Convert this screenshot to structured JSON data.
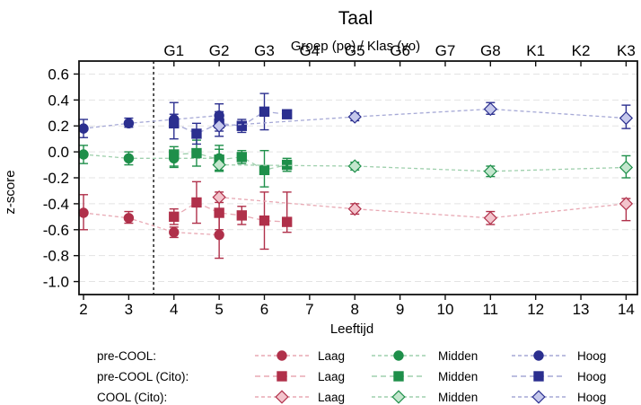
{
  "chart_data": {
    "type": "scatter",
    "title": "Taal",
    "xlabel": "Leeftijd",
    "ylabel": "z-score",
    "top_axis_label": "Groep (po) / Klas (vo)",
    "xlim": [
      1.9,
      14.25
    ],
    "ylim": [
      -1.1,
      0.7
    ],
    "x_ticks": [
      2,
      3,
      4,
      5,
      6,
      7,
      8,
      9,
      10,
      11,
      12,
      13,
      14
    ],
    "y_ticks": [
      0.6,
      0.4,
      0.2,
      0.0,
      -0.2,
      -0.4,
      -0.6,
      -0.8,
      -1.0
    ],
    "y_tick_labels": [
      "0.6",
      "0.4",
      "0.2",
      "0.0",
      "-0.2",
      "-0.4",
      "-0.6",
      "-0.8",
      "-1.0"
    ],
    "top_ticks": [
      {
        "label": "G1",
        "x": 4
      },
      {
        "label": "G2",
        "x": 5
      },
      {
        "label": "G3",
        "x": 6
      },
      {
        "label": "G4",
        "x": 7
      },
      {
        "label": "G5",
        "x": 8
      },
      {
        "label": "G6",
        "x": 9
      },
      {
        "label": "G7",
        "x": 10
      },
      {
        "label": "G8",
        "x": 11
      },
      {
        "label": "K1",
        "x": 12
      },
      {
        "label": "K2",
        "x": 13
      },
      {
        "label": "K3",
        "x": 14
      }
    ],
    "reference_line_x": 3.55,
    "grid": "horizontal-dashed",
    "legend_placement": "bottom",
    "series": [
      {
        "group": "pre-COOL:",
        "level": "Laag",
        "marker": "circle",
        "color": "#b0304a",
        "line_color": "#e8a9b4",
        "fill": "solid",
        "points": [
          {
            "x": 2,
            "y": -0.47,
            "lo": -0.6,
            "hi": -0.33
          },
          {
            "x": 3,
            "y": -0.51,
            "lo": -0.55,
            "hi": -0.46
          },
          {
            "x": 4,
            "y": -0.62,
            "lo": -0.66,
            "hi": -0.58
          },
          {
            "x": 5,
            "y": -0.64,
            "lo": -0.82,
            "hi": -0.46
          }
        ]
      },
      {
        "group": "pre-COOL:",
        "level": "Midden",
        "marker": "circle",
        "color": "#1e8f4a",
        "line_color": "#9fd0ad",
        "fill": "solid",
        "points": [
          {
            "x": 2,
            "y": -0.02,
            "lo": -0.09,
            "hi": 0.05
          },
          {
            "x": 3,
            "y": -0.05,
            "lo": -0.1,
            "hi": 0.0
          },
          {
            "x": 4,
            "y": -0.05,
            "lo": -0.11,
            "hi": 0.01
          },
          {
            "x": 5,
            "y": -0.05,
            "lo": -0.15,
            "hi": 0.05
          }
        ]
      },
      {
        "group": "pre-COOL:",
        "level": "Hoog",
        "marker": "circle",
        "color": "#2b2f8f",
        "line_color": "#a6a9d6",
        "fill": "solid",
        "points": [
          {
            "x": 2,
            "y": 0.18,
            "lo": 0.11,
            "hi": 0.25
          },
          {
            "x": 3,
            "y": 0.22,
            "lo": 0.19,
            "hi": 0.26
          },
          {
            "x": 4,
            "y": 0.25,
            "lo": 0.21,
            "hi": 0.29
          },
          {
            "x": 5,
            "y": 0.28,
            "lo": 0.19,
            "hi": 0.37
          }
        ]
      },
      {
        "group": "pre-COOL (Cito):",
        "level": "Laag",
        "marker": "square",
        "color": "#b0304a",
        "line_color": "#e8a9b4",
        "fill": "solid",
        "points": [
          {
            "x": 4,
            "y": -0.5,
            "lo": -0.56,
            "hi": -0.44
          },
          {
            "x": 4.5,
            "y": -0.39,
            "lo": -0.55,
            "hi": -0.23
          },
          {
            "x": 5,
            "y": -0.47,
            "lo": -0.6,
            "hi": -0.34
          },
          {
            "x": 5.5,
            "y": -0.49,
            "lo": -0.56,
            "hi": -0.42
          },
          {
            "x": 6,
            "y": -0.53,
            "lo": -0.75,
            "hi": -0.31
          },
          {
            "x": 6.5,
            "y": -0.54,
            "lo": -0.62,
            "hi": -0.31
          }
        ]
      },
      {
        "group": "pre-COOL (Cito):",
        "level": "Midden",
        "marker": "square",
        "color": "#1e8f4a",
        "line_color": "#9fd0ad",
        "fill": "solid",
        "points": [
          {
            "x": 4,
            "y": -0.02,
            "lo": -0.12,
            "hi": 0.04
          },
          {
            "x": 4.5,
            "y": -0.01,
            "lo": -0.11,
            "hi": 0.09
          },
          {
            "x": 5,
            "y": -0.06,
            "lo": -0.14,
            "hi": 0.02
          },
          {
            "x": 5.5,
            "y": -0.04,
            "lo": -0.09,
            "hi": 0.01
          },
          {
            "x": 6,
            "y": -0.14,
            "lo": -0.27,
            "hi": 0.01
          },
          {
            "x": 6.5,
            "y": -0.1,
            "lo": -0.15,
            "hi": -0.05
          }
        ]
      },
      {
        "group": "pre-COOL (Cito):",
        "level": "Hoog",
        "marker": "square",
        "color": "#2b2f8f",
        "line_color": "#a6a9d6",
        "fill": "solid",
        "points": [
          {
            "x": 4,
            "y": 0.22,
            "lo": 0.1,
            "hi": 0.38
          },
          {
            "x": 4.5,
            "y": 0.14,
            "lo": 0.06,
            "hi": 0.22
          },
          {
            "x": 5,
            "y": 0.22,
            "lo": 0.12,
            "hi": 0.31
          },
          {
            "x": 5.5,
            "y": 0.2,
            "lo": 0.15,
            "hi": 0.25
          },
          {
            "x": 6,
            "y": 0.31,
            "lo": 0.17,
            "hi": 0.45
          },
          {
            "x": 6.5,
            "y": 0.29,
            "lo": 0.26,
            "hi": 0.32
          }
        ]
      },
      {
        "group": "COOL (Cito):",
        "level": "Laag",
        "marker": "diamond",
        "color": "#b0304a",
        "line_color": "#e8a9b4",
        "fill": "light",
        "light_fill": "#f3c4cc",
        "points": [
          {
            "x": 5,
            "y": -0.35,
            "lo": -0.39,
            "hi": -0.31
          },
          {
            "x": 8,
            "y": -0.44,
            "lo": -0.48,
            "hi": -0.4
          },
          {
            "x": 11,
            "y": -0.51,
            "lo": -0.56,
            "hi": -0.46
          },
          {
            "x": 14,
            "y": -0.4,
            "lo": -0.53,
            "hi": -0.36
          }
        ]
      },
      {
        "group": "COOL (Cito):",
        "level": "Midden",
        "marker": "diamond",
        "color": "#1e8f4a",
        "line_color": "#9fd0ad",
        "fill": "light",
        "light_fill": "#c3e6cd",
        "points": [
          {
            "x": 5,
            "y": -0.1,
            "lo": -0.15,
            "hi": -0.05
          },
          {
            "x": 8,
            "y": -0.11,
            "lo": -0.14,
            "hi": -0.08
          },
          {
            "x": 11,
            "y": -0.15,
            "lo": -0.19,
            "hi": -0.11
          },
          {
            "x": 14,
            "y": -0.12,
            "lo": -0.2,
            "hi": -0.03
          }
        ]
      },
      {
        "group": "COOL (Cito):",
        "level": "Hoog",
        "marker": "diamond",
        "color": "#2b2f8f",
        "line_color": "#a6a9d6",
        "fill": "light",
        "light_fill": "#c5c8ec",
        "points": [
          {
            "x": 5,
            "y": 0.2,
            "lo": 0.16,
            "hi": 0.24
          },
          {
            "x": 8,
            "y": 0.27,
            "lo": 0.24,
            "hi": 0.3
          },
          {
            "x": 11,
            "y": 0.33,
            "lo": 0.29,
            "hi": 0.38
          },
          {
            "x": 14,
            "y": 0.26,
            "lo": 0.18,
            "hi": 0.36
          }
        ]
      }
    ],
    "legend": {
      "rows": [
        "pre-COOL:",
        "pre-COOL (Cito):",
        "COOL (Cito):"
      ],
      "columns": [
        "Laag",
        "Midden",
        "Hoog"
      ]
    }
  }
}
